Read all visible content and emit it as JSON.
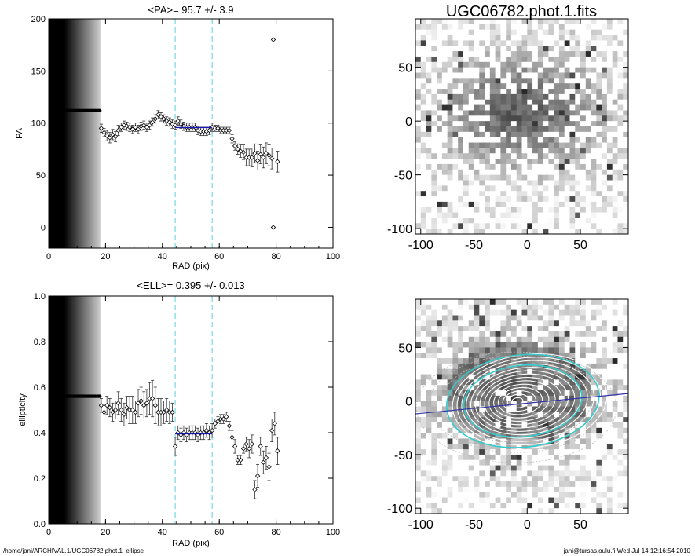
{
  "footer": {
    "path": "/home/jani/ARCHIVAL.1/UGC06782.phot.1_ellipse",
    "user_stamp": "jani@tursas.oulu.fi  Wed Jul 14 12:16:54 2010"
  },
  "chart_data": [
    {
      "type": "scatter",
      "title": "<PA>=  95.7 +/-   3.9",
      "xlabel": "RAD (pix)",
      "ylabel": "PA",
      "xlim": [
        0,
        100
      ],
      "ylim": [
        -20,
        200
      ],
      "xticks": [
        0,
        20,
        40,
        60,
        80,
        100
      ],
      "yticks": [
        0,
        50,
        100,
        150,
        200
      ],
      "shaded_range_x": [
        0,
        18
      ],
      "vlines": [
        44.5,
        57.5
      ],
      "fit_line": {
        "x": [
          44.5,
          57.5
        ],
        "y": [
          95.7,
          95.7
        ],
        "color": "#1a1ab0"
      },
      "points": [
        {
          "x": 18.5,
          "y": 95,
          "e": 4
        },
        {
          "x": 19.5,
          "y": 91,
          "e": 4
        },
        {
          "x": 20.5,
          "y": 88,
          "e": 5
        },
        {
          "x": 21.5,
          "y": 86,
          "e": 5
        },
        {
          "x": 22.5,
          "y": 89,
          "e": 5
        },
        {
          "x": 23.5,
          "y": 87,
          "e": 5
        },
        {
          "x": 24.5,
          "y": 93,
          "e": 5
        },
        {
          "x": 25.5,
          "y": 96,
          "e": 4
        },
        {
          "x": 26.5,
          "y": 98,
          "e": 4
        },
        {
          "x": 27.5,
          "y": 97,
          "e": 4
        },
        {
          "x": 28.5,
          "y": 96,
          "e": 4
        },
        {
          "x": 29.5,
          "y": 94,
          "e": 4
        },
        {
          "x": 30.5,
          "y": 96,
          "e": 4
        },
        {
          "x": 31.5,
          "y": 94,
          "e": 4
        },
        {
          "x": 32.5,
          "y": 97,
          "e": 4
        },
        {
          "x": 33.5,
          "y": 98,
          "e": 4
        },
        {
          "x": 34.5,
          "y": 96,
          "e": 4
        },
        {
          "x": 35.5,
          "y": 98,
          "e": 4
        },
        {
          "x": 36.5,
          "y": 101,
          "e": 4
        },
        {
          "x": 37.5,
          "y": 104,
          "e": 4
        },
        {
          "x": 38.5,
          "y": 108,
          "e": 4
        },
        {
          "x": 39.5,
          "y": 106,
          "e": 4
        },
        {
          "x": 40.5,
          "y": 104,
          "e": 4
        },
        {
          "x": 41.5,
          "y": 102,
          "e": 4
        },
        {
          "x": 42.5,
          "y": 101,
          "e": 4
        },
        {
          "x": 43.5,
          "y": 99,
          "e": 4
        },
        {
          "x": 44.5,
          "y": 98,
          "e": 4
        },
        {
          "x": 45.5,
          "y": 102,
          "e": 4
        },
        {
          "x": 46.5,
          "y": 99,
          "e": 4
        },
        {
          "x": 47.5,
          "y": 97,
          "e": 4
        },
        {
          "x": 48.5,
          "y": 96,
          "e": 4
        },
        {
          "x": 49.5,
          "y": 96,
          "e": 4
        },
        {
          "x": 50.5,
          "y": 96,
          "e": 4
        },
        {
          "x": 51.5,
          "y": 96,
          "e": 4
        },
        {
          "x": 52.5,
          "y": 93,
          "e": 4
        },
        {
          "x": 53.5,
          "y": 92,
          "e": 4
        },
        {
          "x": 54.5,
          "y": 92,
          "e": 4
        },
        {
          "x": 55.5,
          "y": 92,
          "e": 4
        },
        {
          "x": 56.5,
          "y": 93,
          "e": 4
        },
        {
          "x": 57.5,
          "y": 96,
          "e": 4
        },
        {
          "x": 58.5,
          "y": 95,
          "e": 3
        },
        {
          "x": 59.5,
          "y": 95,
          "e": 3
        },
        {
          "x": 60.5,
          "y": 93,
          "e": 3
        },
        {
          "x": 61.5,
          "y": 93,
          "e": 3
        },
        {
          "x": 62.5,
          "y": 93,
          "e": 3
        },
        {
          "x": 63.5,
          "y": 93,
          "e": 3
        },
        {
          "x": 64.5,
          "y": 85,
          "e": 4
        },
        {
          "x": 65.5,
          "y": 78,
          "e": 4
        },
        {
          "x": 66.5,
          "y": 75,
          "e": 5
        },
        {
          "x": 67.5,
          "y": 73,
          "e": 6
        },
        {
          "x": 68.5,
          "y": 72,
          "e": 7
        },
        {
          "x": 69.5,
          "y": 67,
          "e": 8
        },
        {
          "x": 70.5,
          "y": 67,
          "e": 8
        },
        {
          "x": 71.5,
          "y": 67,
          "e": 9
        },
        {
          "x": 72.5,
          "y": 71,
          "e": 9
        },
        {
          "x": 73.5,
          "y": 64,
          "e": 9
        },
        {
          "x": 74.5,
          "y": 70,
          "e": 9
        },
        {
          "x": 75.5,
          "y": 67,
          "e": 10
        },
        {
          "x": 76.5,
          "y": 71,
          "e": 10
        },
        {
          "x": 77.5,
          "y": 69,
          "e": 10
        },
        {
          "x": 78.5,
          "y": 66,
          "e": 10
        },
        {
          "x": 79,
          "y": 180,
          "e": 0
        },
        {
          "x": 79,
          "y": 0,
          "e": 0
        },
        {
          "x": 80.5,
          "y": 63,
          "e": 10
        }
      ],
      "inner_points": {
        "x": [
          0,
          18
        ],
        "y": 112
      }
    },
    {
      "type": "heatmap",
      "title": "UGC06782.phot.1.fits",
      "xlim": [
        -105,
        95
      ],
      "ylim": [
        -105,
        95
      ],
      "xticks": [
        -100,
        -50,
        0,
        50
      ],
      "yticks": [
        -100,
        -50,
        0,
        50
      ]
    },
    {
      "type": "scatter",
      "title": "<ELL>= 0.395 +/-  0.013",
      "xlabel": "RAD (pix)",
      "ylabel": "ellipticity",
      "xlim": [
        0,
        100
      ],
      "ylim": [
        0,
        1
      ],
      "xticks": [
        0,
        20,
        40,
        60,
        80,
        100
      ],
      "yticks": [
        0.0,
        0.2,
        0.4,
        0.6,
        0.8,
        1.0
      ],
      "shaded_range_x": [
        0,
        18
      ],
      "vlines": [
        44.5,
        57.5
      ],
      "fit_line": {
        "x": [
          44.5,
          57.5
        ],
        "y": [
          0.395,
          0.395
        ],
        "color": "#1a1ab0"
      },
      "points": [
        {
          "x": 18.5,
          "y": 0.52,
          "e": 0.03
        },
        {
          "x": 19.5,
          "y": 0.49,
          "e": 0.03
        },
        {
          "x": 20.5,
          "y": 0.52,
          "e": 0.04
        },
        {
          "x": 21.5,
          "y": 0.51,
          "e": 0.04
        },
        {
          "x": 22.5,
          "y": 0.49,
          "e": 0.04
        },
        {
          "x": 23.5,
          "y": 0.5,
          "e": 0.04
        },
        {
          "x": 24.5,
          "y": 0.53,
          "e": 0.05
        },
        {
          "x": 25.5,
          "y": 0.5,
          "e": 0.05
        },
        {
          "x": 26.5,
          "y": 0.48,
          "e": 0.05
        },
        {
          "x": 27.5,
          "y": 0.51,
          "e": 0.05
        },
        {
          "x": 28.5,
          "y": 0.5,
          "e": 0.06
        },
        {
          "x": 29.5,
          "y": 0.5,
          "e": 0.06
        },
        {
          "x": 30.5,
          "y": 0.49,
          "e": 0.05
        },
        {
          "x": 31.5,
          "y": 0.53,
          "e": 0.06
        },
        {
          "x": 32.5,
          "y": 0.54,
          "e": 0.06
        },
        {
          "x": 33.5,
          "y": 0.52,
          "e": 0.06
        },
        {
          "x": 34.5,
          "y": 0.53,
          "e": 0.06
        },
        {
          "x": 35.5,
          "y": 0.55,
          "e": 0.07
        },
        {
          "x": 36.5,
          "y": 0.55,
          "e": 0.08
        },
        {
          "x": 37.5,
          "y": 0.52,
          "e": 0.08
        },
        {
          "x": 38.5,
          "y": 0.49,
          "e": 0.06
        },
        {
          "x": 39.5,
          "y": 0.49,
          "e": 0.06
        },
        {
          "x": 40.5,
          "y": 0.49,
          "e": 0.05
        },
        {
          "x": 41.5,
          "y": 0.5,
          "e": 0.05
        },
        {
          "x": 42.5,
          "y": 0.49,
          "e": 0.05
        },
        {
          "x": 43.5,
          "y": 0.49,
          "e": 0.04
        },
        {
          "x": 44.5,
          "y": 0.34,
          "e": 0.04
        },
        {
          "x": 45.5,
          "y": 0.4,
          "e": 0.03
        },
        {
          "x": 46.5,
          "y": 0.39,
          "e": 0.03
        },
        {
          "x": 47.5,
          "y": 0.4,
          "e": 0.03
        },
        {
          "x": 48.5,
          "y": 0.39,
          "e": 0.03
        },
        {
          "x": 49.5,
          "y": 0.4,
          "e": 0.03
        },
        {
          "x": 50.5,
          "y": 0.4,
          "e": 0.03
        },
        {
          "x": 51.5,
          "y": 0.4,
          "e": 0.03
        },
        {
          "x": 52.5,
          "y": 0.39,
          "e": 0.03
        },
        {
          "x": 53.5,
          "y": 0.4,
          "e": 0.03
        },
        {
          "x": 54.5,
          "y": 0.4,
          "e": 0.03
        },
        {
          "x": 55.5,
          "y": 0.41,
          "e": 0.03
        },
        {
          "x": 56.5,
          "y": 0.4,
          "e": 0.03
        },
        {
          "x": 57.5,
          "y": 0.41,
          "e": 0.03
        },
        {
          "x": 58.5,
          "y": 0.44,
          "e": 0.02
        },
        {
          "x": 59.5,
          "y": 0.45,
          "e": 0.02
        },
        {
          "x": 60.5,
          "y": 0.46,
          "e": 0.02
        },
        {
          "x": 61.5,
          "y": 0.46,
          "e": 0.02
        },
        {
          "x": 62.5,
          "y": 0.47,
          "e": 0.02
        },
        {
          "x": 63.5,
          "y": 0.43,
          "e": 0.02
        },
        {
          "x": 64.5,
          "y": 0.38,
          "e": 0.03
        },
        {
          "x": 65.5,
          "y": 0.34,
          "e": 0.03
        },
        {
          "x": 66.5,
          "y": 0.28,
          "e": 0.02
        },
        {
          "x": 67.5,
          "y": 0.28,
          "e": 0.02
        },
        {
          "x": 68.5,
          "y": 0.33,
          "e": 0.02
        },
        {
          "x": 69.5,
          "y": 0.35,
          "e": 0.03
        },
        {
          "x": 70.5,
          "y": 0.33,
          "e": 0.04
        },
        {
          "x": 71.5,
          "y": 0.35,
          "e": 0.04
        },
        {
          "x": 72.5,
          "y": 0.15,
          "e": 0.04
        },
        {
          "x": 73.5,
          "y": 0.21,
          "e": 0.05
        },
        {
          "x": 74.5,
          "y": 0.34,
          "e": 0.04
        },
        {
          "x": 75.5,
          "y": 0.27,
          "e": 0.05
        },
        {
          "x": 76.5,
          "y": 0.29,
          "e": 0.05
        },
        {
          "x": 77.5,
          "y": 0.25,
          "e": 0.06
        },
        {
          "x": 78.5,
          "y": 0.41,
          "e": 0.05
        },
        {
          "x": 79.5,
          "y": 0.44,
          "e": 0.05
        },
        {
          "x": 80.5,
          "y": 0.32,
          "e": 0.06
        }
      ],
      "inner_points": {
        "x": [
          0,
          18
        ],
        "y": 0.56
      }
    },
    {
      "type": "heatmap",
      "title": "",
      "xlim": [
        -105,
        95
      ],
      "ylim": [
        -105,
        95
      ],
      "xticks": [
        -100,
        -50,
        0,
        50
      ],
      "yticks": [
        -100,
        -50,
        0,
        50
      ],
      "overlay": "fitted isophote ellipses with PA line",
      "colors": {
        "ellipse_highlight": "#33cccc",
        "pa_line": "#3333aa"
      }
    }
  ]
}
